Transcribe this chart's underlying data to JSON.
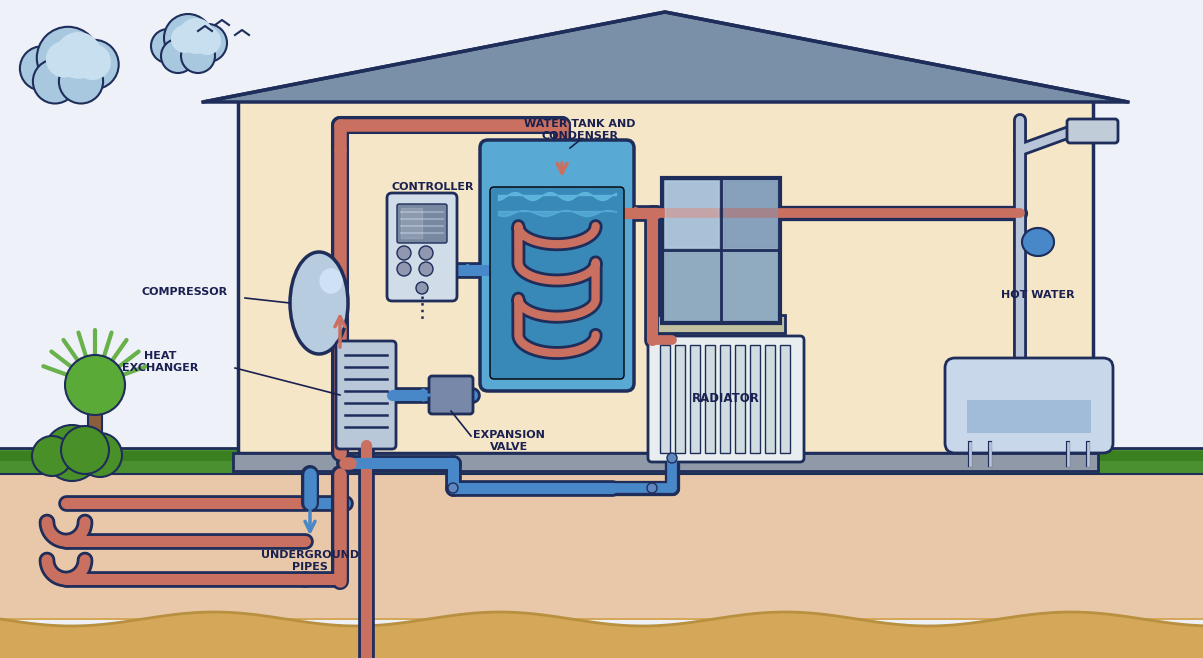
{
  "bg_color": "#eef1f7",
  "house_wall": "#f5e6c8",
  "house_outline": "#1e2d5a",
  "roof_color": "#7a90a8",
  "ground_green": "#4a9030",
  "ground_green2": "#3a8020",
  "soil_color": "#e8c8a8",
  "deep_soil": "#d4a858",
  "tree_trunk": "#8B5E3C",
  "tree_foliage1": "#5aaa38",
  "tree_foliage2": "#4a9028",
  "cloud_color": "#a8c8e0",
  "cloud_light": "#c8dff0",
  "pipe_hot": "#c97060",
  "pipe_cold": "#4888c8",
  "pipe_outline": "#1e2d5a",
  "label_color": "#1a2050",
  "compressor_fill": "#b8cce0",
  "compressor_hi": "#d8eaff",
  "tank_fill": "#58aad5",
  "tank_water": "#3888b8",
  "tank_water_top": "#60b8e0",
  "radiator_fill": "#e8eef0",
  "radiator_fin": "#d0dce0",
  "controller_fill": "#d0dce8",
  "controller_screen": "#8898b0",
  "hex_fill": "#b8c8d8",
  "exp_valve_fill": "#7888a8",
  "shower_pipe": "#b8c4d8",
  "tub_fill": "#c8d8ea",
  "tub_water_fill": "#a0bcd8",
  "window_fill": "#90b8d8",
  "window_frame": "#c8c8b0",
  "labels": {
    "compressor": "COMPRESSOR",
    "heat_exchanger": "HEAT\nEXCHANGER",
    "controller": "CONTROLLER",
    "water_tank": "WATER TANK AND\nCONDENSER",
    "radiator": "RADIATOR",
    "hot_water": "HOT WATER",
    "expansion_valve": "EXPANSION\nVALVE",
    "underground_pipes": "UNDERGROUND\nPIPES"
  }
}
